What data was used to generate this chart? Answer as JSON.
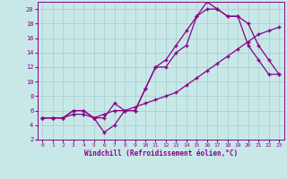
{
  "background_color": "#c8e8e8",
  "grid_color": "#a8d0d0",
  "line_color": "#880088",
  "xlim": [
    -0.5,
    23.5
  ],
  "ylim": [
    2,
    21
  ],
  "xticks": [
    0,
    1,
    2,
    3,
    4,
    5,
    6,
    7,
    8,
    9,
    10,
    11,
    12,
    13,
    14,
    15,
    16,
    17,
    18,
    19,
    20,
    21,
    22,
    23
  ],
  "yticks": [
    2,
    4,
    6,
    8,
    10,
    12,
    14,
    16,
    18,
    20
  ],
  "xlabel": "Windchill (Refroidissement éolien,°C)",
  "curve1_x": [
    0,
    1,
    2,
    3,
    4,
    5,
    6,
    7,
    8,
    9,
    10,
    11,
    12,
    13,
    14,
    15,
    16,
    17,
    18,
    19,
    20,
    21,
    22,
    23
  ],
  "curve1_y": [
    5,
    5,
    5,
    6,
    6,
    5,
    3,
    4,
    6,
    6,
    9,
    12,
    12,
    14,
    15,
    19,
    20,
    20,
    19,
    19,
    15,
    13,
    11,
    11
  ],
  "curve2_x": [
    0,
    1,
    2,
    3,
    4,
    5,
    6,
    7,
    8,
    9,
    10,
    11,
    12,
    13,
    14,
    15,
    16,
    17,
    18,
    19,
    20,
    21,
    22,
    23
  ],
  "curve2_y": [
    5,
    5,
    5,
    6,
    6,
    5,
    5,
    7,
    6,
    6,
    9,
    12,
    13,
    15,
    17,
    19,
    21,
    20,
    19,
    19,
    18,
    15,
    13,
    11
  ],
  "curve3_x": [
    0,
    1,
    2,
    3,
    4,
    5,
    6,
    7,
    8,
    9,
    10,
    11,
    12,
    13,
    14,
    15,
    16,
    17,
    18,
    19,
    20,
    21,
    22,
    23
  ],
  "curve3_y": [
    5,
    5,
    5,
    5.5,
    5.5,
    5,
    5.5,
    6,
    6,
    6.5,
    7,
    7.5,
    8,
    8.5,
    9.5,
    10.5,
    11.5,
    12.5,
    13.5,
    14.5,
    15.5,
    16.5,
    17,
    17.5
  ]
}
